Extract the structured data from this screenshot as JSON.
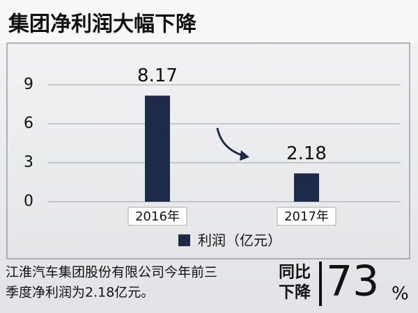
{
  "chart_data": {
    "type": "bar",
    "title": "集团净利润大幅下降",
    "categories": [
      "2016年",
      "2017年"
    ],
    "series": [
      {
        "name": "利润（亿元）",
        "color": "#1e2a4a",
        "values": [
          8.17,
          2.18
        ]
      }
    ],
    "ylim": [
      0,
      9
    ],
    "yticks": [
      0,
      3,
      6,
      9
    ],
    "grid": true,
    "annotation": {
      "lines": [
        "江淮汽车集团股份有限公司今年前三",
        "季度净利润为2.18亿元。"
      ],
      "badge": [
        "同比",
        "下降"
      ],
      "change": 73,
      "change_unit": "%"
    }
  }
}
